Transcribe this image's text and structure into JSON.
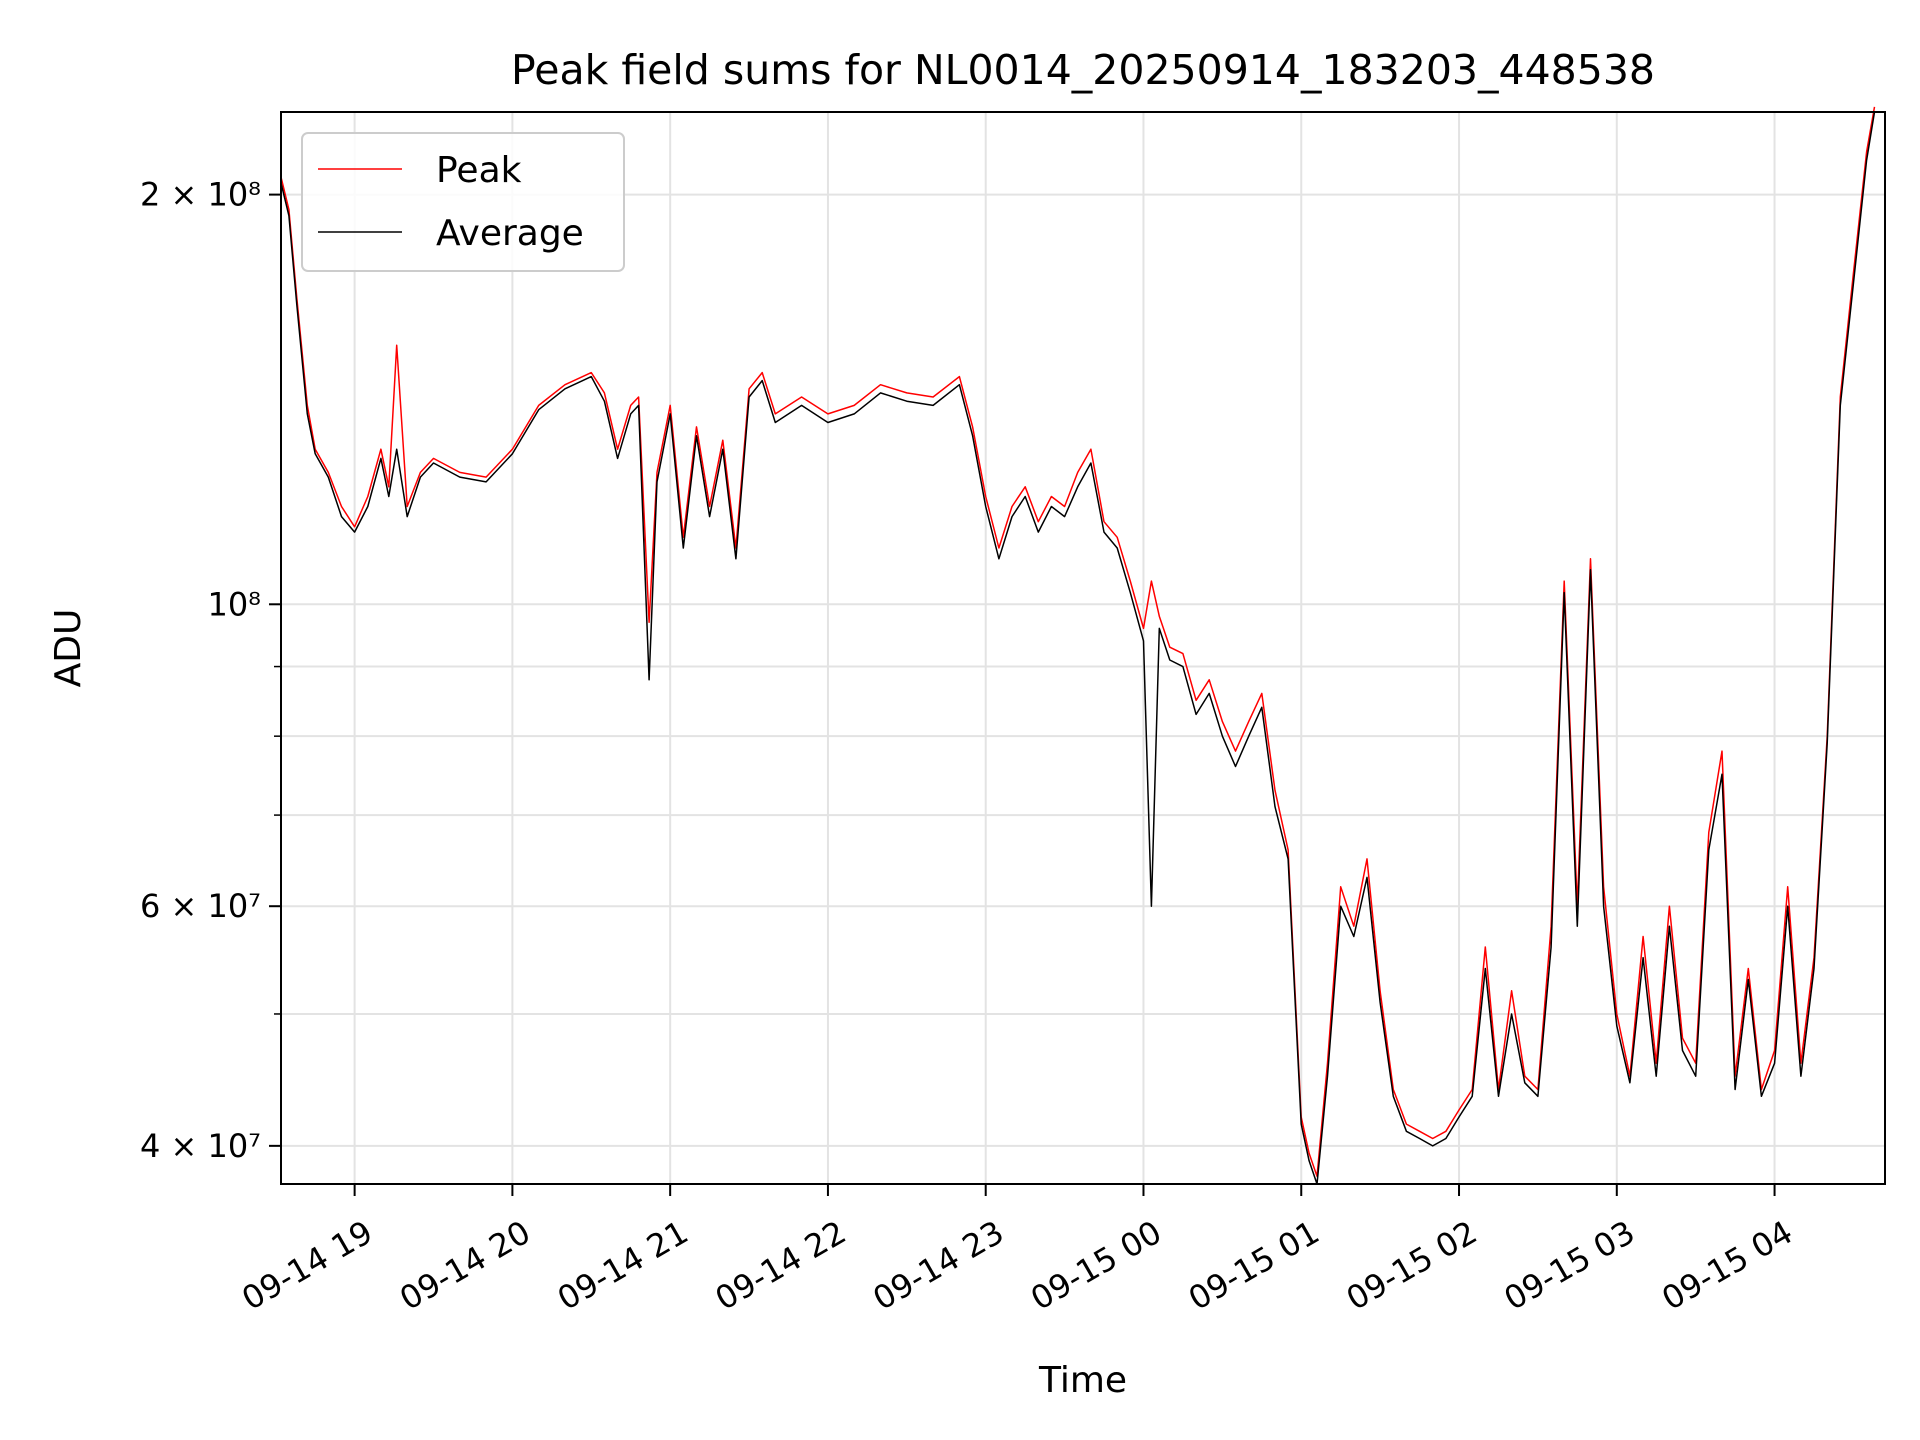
{
  "chart_data": {
    "type": "line",
    "title": "Peak field sums for NL0014_20250914_183203_448538",
    "xlabel": "Time",
    "ylabel": "ADU",
    "y_scale": "log",
    "ylim": [
      37500000,
      230000000
    ],
    "xlim": [
      "2025-09-14 18:32",
      "2025-09-15 04:42"
    ],
    "grid": true,
    "legend_position": "top-left",
    "x_ticks": [
      "09-14 19",
      "09-14 20",
      "09-14 21",
      "09-14 22",
      "09-14 23",
      "09-15 00",
      "09-15 01",
      "09-15 02",
      "09-15 03",
      "09-15 04"
    ],
    "x_tick_times": [
      "2025-09-14 19:00",
      "2025-09-14 20:00",
      "2025-09-14 21:00",
      "2025-09-14 22:00",
      "2025-09-14 23:00",
      "2025-09-15 00:00",
      "2025-09-15 01:00",
      "2025-09-15 02:00",
      "2025-09-15 03:00",
      "2025-09-15 04:00"
    ],
    "y_ticks": [
      {
        "value": 40000000,
        "label": "4 × 10⁷"
      },
      {
        "value": 60000000,
        "label": "6 × 10⁷"
      },
      {
        "value": 100000000,
        "label": "10⁸"
      },
      {
        "value": 200000000,
        "label": "2 × 10⁸"
      }
    ],
    "y_minor_ticks": [
      50000000,
      70000000,
      80000000,
      90000000
    ],
    "series": [
      {
        "name": "Peak",
        "color": "#ff0000",
        "x": [
          "2025-09-14 18:32",
          "2025-09-14 18:35",
          "2025-09-14 18:38",
          "2025-09-14 18:42",
          "2025-09-14 18:45",
          "2025-09-14 18:50",
          "2025-09-14 18:55",
          "2025-09-14 19:00",
          "2025-09-14 19:05",
          "2025-09-14 19:10",
          "2025-09-14 19:13",
          "2025-09-14 19:16",
          "2025-09-14 19:20",
          "2025-09-14 19:25",
          "2025-09-14 19:30",
          "2025-09-14 19:40",
          "2025-09-14 19:50",
          "2025-09-14 20:00",
          "2025-09-14 20:10",
          "2025-09-14 20:20",
          "2025-09-14 20:30",
          "2025-09-14 20:35",
          "2025-09-14 20:40",
          "2025-09-14 20:45",
          "2025-09-14 20:48",
          "2025-09-14 20:52",
          "2025-09-14 20:55",
          "2025-09-14 21:00",
          "2025-09-14 21:05",
          "2025-09-14 21:10",
          "2025-09-14 21:15",
          "2025-09-14 21:20",
          "2025-09-14 21:25",
          "2025-09-14 21:30",
          "2025-09-14 21:35",
          "2025-09-14 21:40",
          "2025-09-14 21:50",
          "2025-09-14 22:00",
          "2025-09-14 22:10",
          "2025-09-14 22:20",
          "2025-09-14 22:30",
          "2025-09-14 22:40",
          "2025-09-14 22:50",
          "2025-09-14 22:55",
          "2025-09-14 23:00",
          "2025-09-14 23:05",
          "2025-09-14 23:10",
          "2025-09-14 23:15",
          "2025-09-14 23:20",
          "2025-09-14 23:25",
          "2025-09-14 23:30",
          "2025-09-14 23:35",
          "2025-09-14 23:40",
          "2025-09-14 23:45",
          "2025-09-14 23:50",
          "2025-09-14 23:55",
          "2025-09-15 00:00",
          "2025-09-15 00:03",
          "2025-09-15 00:06",
          "2025-09-15 00:10",
          "2025-09-15 00:15",
          "2025-09-15 00:20",
          "2025-09-15 00:25",
          "2025-09-15 00:30",
          "2025-09-15 00:35",
          "2025-09-15 00:40",
          "2025-09-15 00:45",
          "2025-09-15 00:50",
          "2025-09-15 00:55",
          "2025-09-15 01:00",
          "2025-09-15 01:03",
          "2025-09-15 01:06",
          "2025-09-15 01:10",
          "2025-09-15 01:15",
          "2025-09-15 01:20",
          "2025-09-15 01:25",
          "2025-09-15 01:30",
          "2025-09-15 01:35",
          "2025-09-15 01:40",
          "2025-09-15 01:45",
          "2025-09-15 01:50",
          "2025-09-15 01:55",
          "2025-09-15 02:00",
          "2025-09-15 02:05",
          "2025-09-15 02:10",
          "2025-09-15 02:15",
          "2025-09-15 02:20",
          "2025-09-15 02:25",
          "2025-09-15 02:30",
          "2025-09-15 02:35",
          "2025-09-15 02:40",
          "2025-09-15 02:45",
          "2025-09-15 02:50",
          "2025-09-15 02:55",
          "2025-09-15 03:00",
          "2025-09-15 03:05",
          "2025-09-15 03:10",
          "2025-09-15 03:15",
          "2025-09-15 03:20",
          "2025-09-15 03:25",
          "2025-09-15 03:30",
          "2025-09-15 03:35",
          "2025-09-15 03:40",
          "2025-09-15 03:45",
          "2025-09-15 03:50",
          "2025-09-15 03:55",
          "2025-09-15 04:00",
          "2025-09-15 04:05",
          "2025-09-15 04:10",
          "2025-09-15 04:15",
          "2025-09-15 04:20",
          "2025-09-15 04:25",
          "2025-09-15 04:30",
          "2025-09-15 04:35",
          "2025-09-15 04:38"
        ],
        "values": [
          206000000,
          195000000,
          168000000,
          140000000,
          130000000,
          125000000,
          118000000,
          114000000,
          120000000,
          130000000,
          122000000,
          155000000,
          118000000,
          125000000,
          128000000,
          125000000,
          124000000,
          130000000,
          140000000,
          145000000,
          148000000,
          143000000,
          130000000,
          140000000,
          142000000,
          97000000,
          125000000,
          140000000,
          112000000,
          135000000,
          118000000,
          132000000,
          110000000,
          144000000,
          148000000,
          138000000,
          142000000,
          138000000,
          140000000,
          145000000,
          143000000,
          142000000,
          147000000,
          135000000,
          120000000,
          110000000,
          118000000,
          122000000,
          115000000,
          120000000,
          118000000,
          125000000,
          130000000,
          115000000,
          112000000,
          104000000,
          96000000,
          104000000,
          98000000,
          93000000,
          92000000,
          85000000,
          88000000,
          82000000,
          78000000,
          82000000,
          86000000,
          73000000,
          66000000,
          42000000,
          39500000,
          38000000,
          46000000,
          62000000,
          58000000,
          65000000,
          52000000,
          44000000,
          41500000,
          41000000,
          40500000,
          41000000,
          42500000,
          44000000,
          56000000,
          44000000,
          52000000,
          45000000,
          44000000,
          58000000,
          104000000,
          60000000,
          108000000,
          62000000,
          50000000,
          45000000,
          57000000,
          46000000,
          60000000,
          48000000,
          46000000,
          68000000,
          78000000,
          45000000,
          54000000,
          44000000,
          47000000,
          62000000,
          46000000,
          55000000,
          80000000,
          142000000,
          175000000,
          215000000,
          232000000
        ]
      },
      {
        "name": "Average",
        "color": "#000000",
        "x": [
          "2025-09-14 18:32",
          "2025-09-14 18:35",
          "2025-09-14 18:38",
          "2025-09-14 18:42",
          "2025-09-14 18:45",
          "2025-09-14 18:50",
          "2025-09-14 18:55",
          "2025-09-14 19:00",
          "2025-09-14 19:05",
          "2025-09-14 19:10",
          "2025-09-14 19:13",
          "2025-09-14 19:16",
          "2025-09-14 19:20",
          "2025-09-14 19:25",
          "2025-09-14 19:30",
          "2025-09-14 19:40",
          "2025-09-14 19:50",
          "2025-09-14 20:00",
          "2025-09-14 20:10",
          "2025-09-14 20:20",
          "2025-09-14 20:30",
          "2025-09-14 20:35",
          "2025-09-14 20:40",
          "2025-09-14 20:45",
          "2025-09-14 20:48",
          "2025-09-14 20:52",
          "2025-09-14 20:55",
          "2025-09-14 21:00",
          "2025-09-14 21:05",
          "2025-09-14 21:10",
          "2025-09-14 21:15",
          "2025-09-14 21:20",
          "2025-09-14 21:25",
          "2025-09-14 21:30",
          "2025-09-14 21:35",
          "2025-09-14 21:40",
          "2025-09-14 21:50",
          "2025-09-14 22:00",
          "2025-09-14 22:10",
          "2025-09-14 22:20",
          "2025-09-14 22:30",
          "2025-09-14 22:40",
          "2025-09-14 22:50",
          "2025-09-14 22:55",
          "2025-09-14 23:00",
          "2025-09-14 23:05",
          "2025-09-14 23:10",
          "2025-09-14 23:15",
          "2025-09-14 23:20",
          "2025-09-14 23:25",
          "2025-09-14 23:30",
          "2025-09-14 23:35",
          "2025-09-14 23:40",
          "2025-09-14 23:45",
          "2025-09-14 23:50",
          "2025-09-14 23:55",
          "2025-09-15 00:00",
          "2025-09-15 00:03",
          "2025-09-15 00:06",
          "2025-09-15 00:10",
          "2025-09-15 00:15",
          "2025-09-15 00:20",
          "2025-09-15 00:25",
          "2025-09-15 00:30",
          "2025-09-15 00:35",
          "2025-09-15 00:40",
          "2025-09-15 00:45",
          "2025-09-15 00:50",
          "2025-09-15 00:55",
          "2025-09-15 01:00",
          "2025-09-15 01:03",
          "2025-09-15 01:06",
          "2025-09-15 01:10",
          "2025-09-15 01:15",
          "2025-09-15 01:20",
          "2025-09-15 01:25",
          "2025-09-15 01:30",
          "2025-09-15 01:35",
          "2025-09-15 01:40",
          "2025-09-15 01:45",
          "2025-09-15 01:50",
          "2025-09-15 01:55",
          "2025-09-15 02:00",
          "2025-09-15 02:05",
          "2025-09-15 02:10",
          "2025-09-15 02:15",
          "2025-09-15 02:20",
          "2025-09-15 02:25",
          "2025-09-15 02:30",
          "2025-09-15 02:35",
          "2025-09-15 02:40",
          "2025-09-15 02:45",
          "2025-09-15 02:50",
          "2025-09-15 02:55",
          "2025-09-15 03:00",
          "2025-09-15 03:05",
          "2025-09-15 03:10",
          "2025-09-15 03:15",
          "2025-09-15 03:20",
          "2025-09-15 03:25",
          "2025-09-15 03:30",
          "2025-09-15 03:35",
          "2025-09-15 03:40",
          "2025-09-15 03:45",
          "2025-09-15 03:50",
          "2025-09-15 03:55",
          "2025-09-15 04:00",
          "2025-09-15 04:05",
          "2025-09-15 04:10",
          "2025-09-15 04:15",
          "2025-09-15 04:20",
          "2025-09-15 04:25",
          "2025-09-15 04:30",
          "2025-09-15 04:35",
          "2025-09-15 04:38"
        ],
        "values": [
          204000000,
          193000000,
          166000000,
          138000000,
          129000000,
          124000000,
          116000000,
          113000000,
          118000000,
          128000000,
          120000000,
          130000000,
          116000000,
          124000000,
          127000000,
          124000000,
          123000000,
          129000000,
          139000000,
          144000000,
          147000000,
          141000000,
          128000000,
          138000000,
          140000000,
          88000000,
          123000000,
          138000000,
          110000000,
          133000000,
          116000000,
          130000000,
          108000000,
          142000000,
          146000000,
          136000000,
          140000000,
          136000000,
          138000000,
          143000000,
          141000000,
          140000000,
          145000000,
          133000000,
          118000000,
          108000000,
          116000000,
          120000000,
          113000000,
          118000000,
          116000000,
          122000000,
          127000000,
          113000000,
          110000000,
          102000000,
          94000000,
          60000000,
          96000000,
          91000000,
          90000000,
          83000000,
          86000000,
          80000000,
          76000000,
          80000000,
          84000000,
          71000000,
          65000000,
          41500000,
          39000000,
          37500000,
          45000000,
          60000000,
          57000000,
          63000000,
          51000000,
          43500000,
          41000000,
          40500000,
          40000000,
          40500000,
          42000000,
          43500000,
          54000000,
          43500000,
          50000000,
          44500000,
          43500000,
          56000000,
          102000000,
          58000000,
          106000000,
          60000000,
          49000000,
          44500000,
          55000000,
          45000000,
          58000000,
          47000000,
          45000000,
          66000000,
          75000000,
          44000000,
          53000000,
          43500000,
          46000000,
          60000000,
          45000000,
          54000000,
          79000000,
          140000000,
          172000000,
          212000000,
          230000000
        ]
      }
    ]
  }
}
